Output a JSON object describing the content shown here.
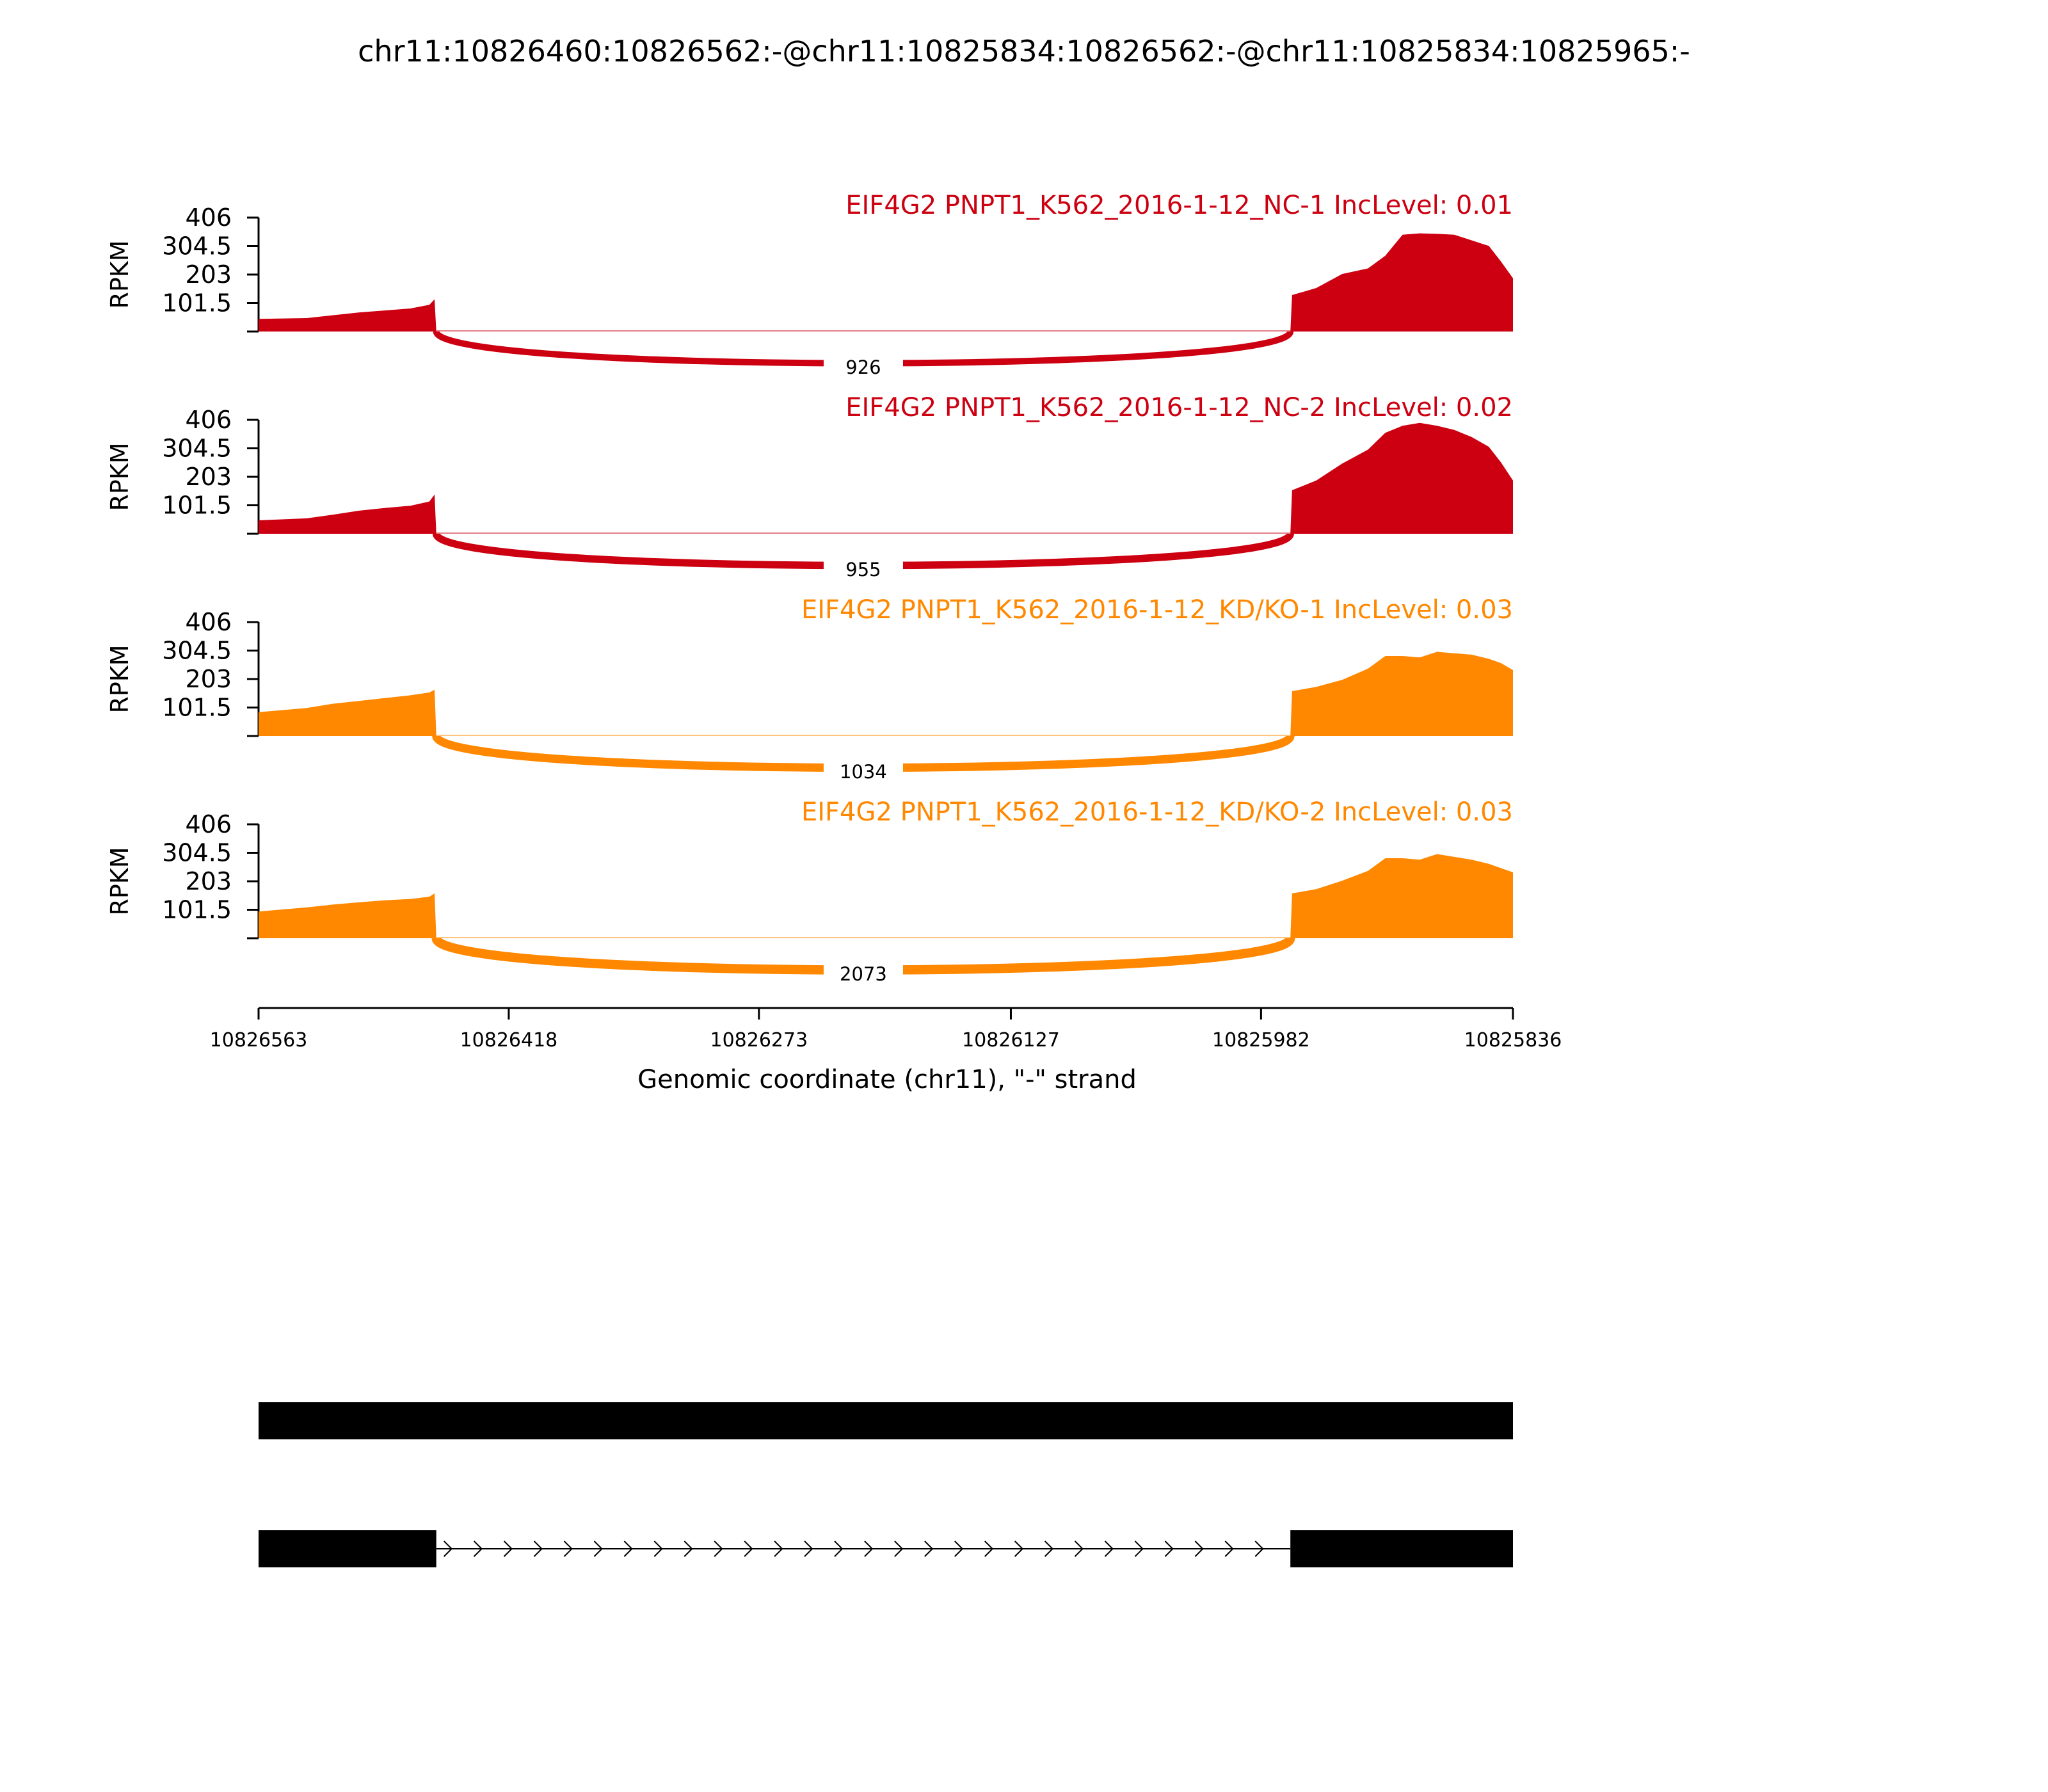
{
  "chart_data": {
    "type": "area",
    "title": "chr11:10826460:10826562:-@chr11:10825834:10826562:-@chr11:10825834:10825965:-",
    "xlabel": "Genomic coordinate (chr11), \"-\" strand",
    "ylabel": "RPKM",
    "xlim": [
      10826563,
      10825836
    ],
    "x_direction": "reversed",
    "x_ticks": [
      "10826563",
      "10826418",
      "10826273",
      "10826127",
      "10825982",
      "10825836"
    ],
    "x_tick_values": [
      10826563,
      10826418,
      10826273,
      10826127,
      10825982,
      10825836
    ],
    "ylim": [
      0,
      406
    ],
    "y_ticks": [
      "101.5",
      "203",
      "304.5",
      "406"
    ],
    "y_tick_values": [
      101.5,
      203,
      304.5,
      406
    ],
    "junction_coords": {
      "upstream_exon_end": 10826460,
      "downstream_exon_start": 10825965
    },
    "series": [
      {
        "name": "EIF4G2 PNPT1_K562_2016-1-12_NC-1 IncLevel: 0.01",
        "color": "#CC0011",
        "junction_count": "926",
        "coverage": [
          [
            10826563,
            45
          ],
          [
            10826535,
            48
          ],
          [
            10826520,
            58
          ],
          [
            10826505,
            68
          ],
          [
            10826490,
            75
          ],
          [
            10826475,
            82
          ],
          [
            10826464,
            95
          ],
          [
            10826461,
            115
          ],
          [
            10826460,
            0
          ],
          [
            10825965,
            0
          ],
          [
            10825964,
            130
          ],
          [
            10825950,
            155
          ],
          [
            10825935,
            205
          ],
          [
            10825920,
            225
          ],
          [
            10825910,
            270
          ],
          [
            10825900,
            345
          ],
          [
            10825890,
            350
          ],
          [
            10825880,
            348
          ],
          [
            10825870,
            345
          ],
          [
            10825860,
            325
          ],
          [
            10825850,
            305
          ],
          [
            10825843,
            250
          ],
          [
            10825836,
            190
          ]
        ]
      },
      {
        "name": "EIF4G2 PNPT1_K562_2016-1-12_NC-2 IncLevel: 0.02",
        "color": "#CC0011",
        "junction_count": "955",
        "coverage": [
          [
            10826563,
            48
          ],
          [
            10826535,
            55
          ],
          [
            10826520,
            68
          ],
          [
            10826505,
            82
          ],
          [
            10826490,
            92
          ],
          [
            10826475,
            100
          ],
          [
            10826464,
            115
          ],
          [
            10826461,
            140
          ],
          [
            10826460,
            0
          ],
          [
            10825965,
            0
          ],
          [
            10825964,
            155
          ],
          [
            10825950,
            190
          ],
          [
            10825935,
            250
          ],
          [
            10825920,
            300
          ],
          [
            10825910,
            360
          ],
          [
            10825900,
            385
          ],
          [
            10825890,
            395
          ],
          [
            10825880,
            385
          ],
          [
            10825870,
            370
          ],
          [
            10825860,
            345
          ],
          [
            10825850,
            310
          ],
          [
            10825843,
            255
          ],
          [
            10825836,
            190
          ]
        ]
      },
      {
        "name": "EIF4G2 PNPT1_K562_2016-1-12_KD/KO-1 IncLevel: 0.03",
        "color": "#FF8800",
        "junction_count": "1034",
        "coverage": [
          [
            10826563,
            85
          ],
          [
            10826535,
            100
          ],
          [
            10826520,
            115
          ],
          [
            10826505,
            125
          ],
          [
            10826490,
            135
          ],
          [
            10826475,
            145
          ],
          [
            10826464,
            155
          ],
          [
            10826461,
            165
          ],
          [
            10826460,
            0
          ],
          [
            10825965,
            0
          ],
          [
            10825964,
            160
          ],
          [
            10825950,
            175
          ],
          [
            10825935,
            200
          ],
          [
            10825920,
            240
          ],
          [
            10825910,
            285
          ],
          [
            10825900,
            285
          ],
          [
            10825890,
            280
          ],
          [
            10825880,
            300
          ],
          [
            10825870,
            295
          ],
          [
            10825860,
            290
          ],
          [
            10825850,
            275
          ],
          [
            10825843,
            260
          ],
          [
            10825836,
            235
          ]
        ]
      },
      {
        "name": "EIF4G2 PNPT1_K562_2016-1-12_KD/KO-2 IncLevel: 0.03",
        "color": "#FF8800",
        "junction_count": "2073",
        "coverage": [
          [
            10826563,
            95
          ],
          [
            10826535,
            110
          ],
          [
            10826520,
            120
          ],
          [
            10826505,
            128
          ],
          [
            10826490,
            135
          ],
          [
            10826475,
            140
          ],
          [
            10826464,
            148
          ],
          [
            10826461,
            160
          ],
          [
            10826460,
            0
          ],
          [
            10825965,
            0
          ],
          [
            10825964,
            160
          ],
          [
            10825950,
            175
          ],
          [
            10825935,
            205
          ],
          [
            10825920,
            240
          ],
          [
            10825910,
            285
          ],
          [
            10825900,
            285
          ],
          [
            10825890,
            280
          ],
          [
            10825880,
            300
          ],
          [
            10825870,
            290
          ],
          [
            10825860,
            280
          ],
          [
            10825850,
            265
          ],
          [
            10825843,
            250
          ],
          [
            10825836,
            235
          ]
        ]
      }
    ],
    "gene_models": [
      {
        "type": "single-exon",
        "exons": [
          [
            10826563,
            10825836
          ]
        ]
      },
      {
        "type": "exon-skip",
        "exons": [
          [
            10826563,
            10826460
          ],
          [
            10825965,
            10825836
          ]
        ],
        "intron_strand_arrows": ">"
      }
    ]
  }
}
